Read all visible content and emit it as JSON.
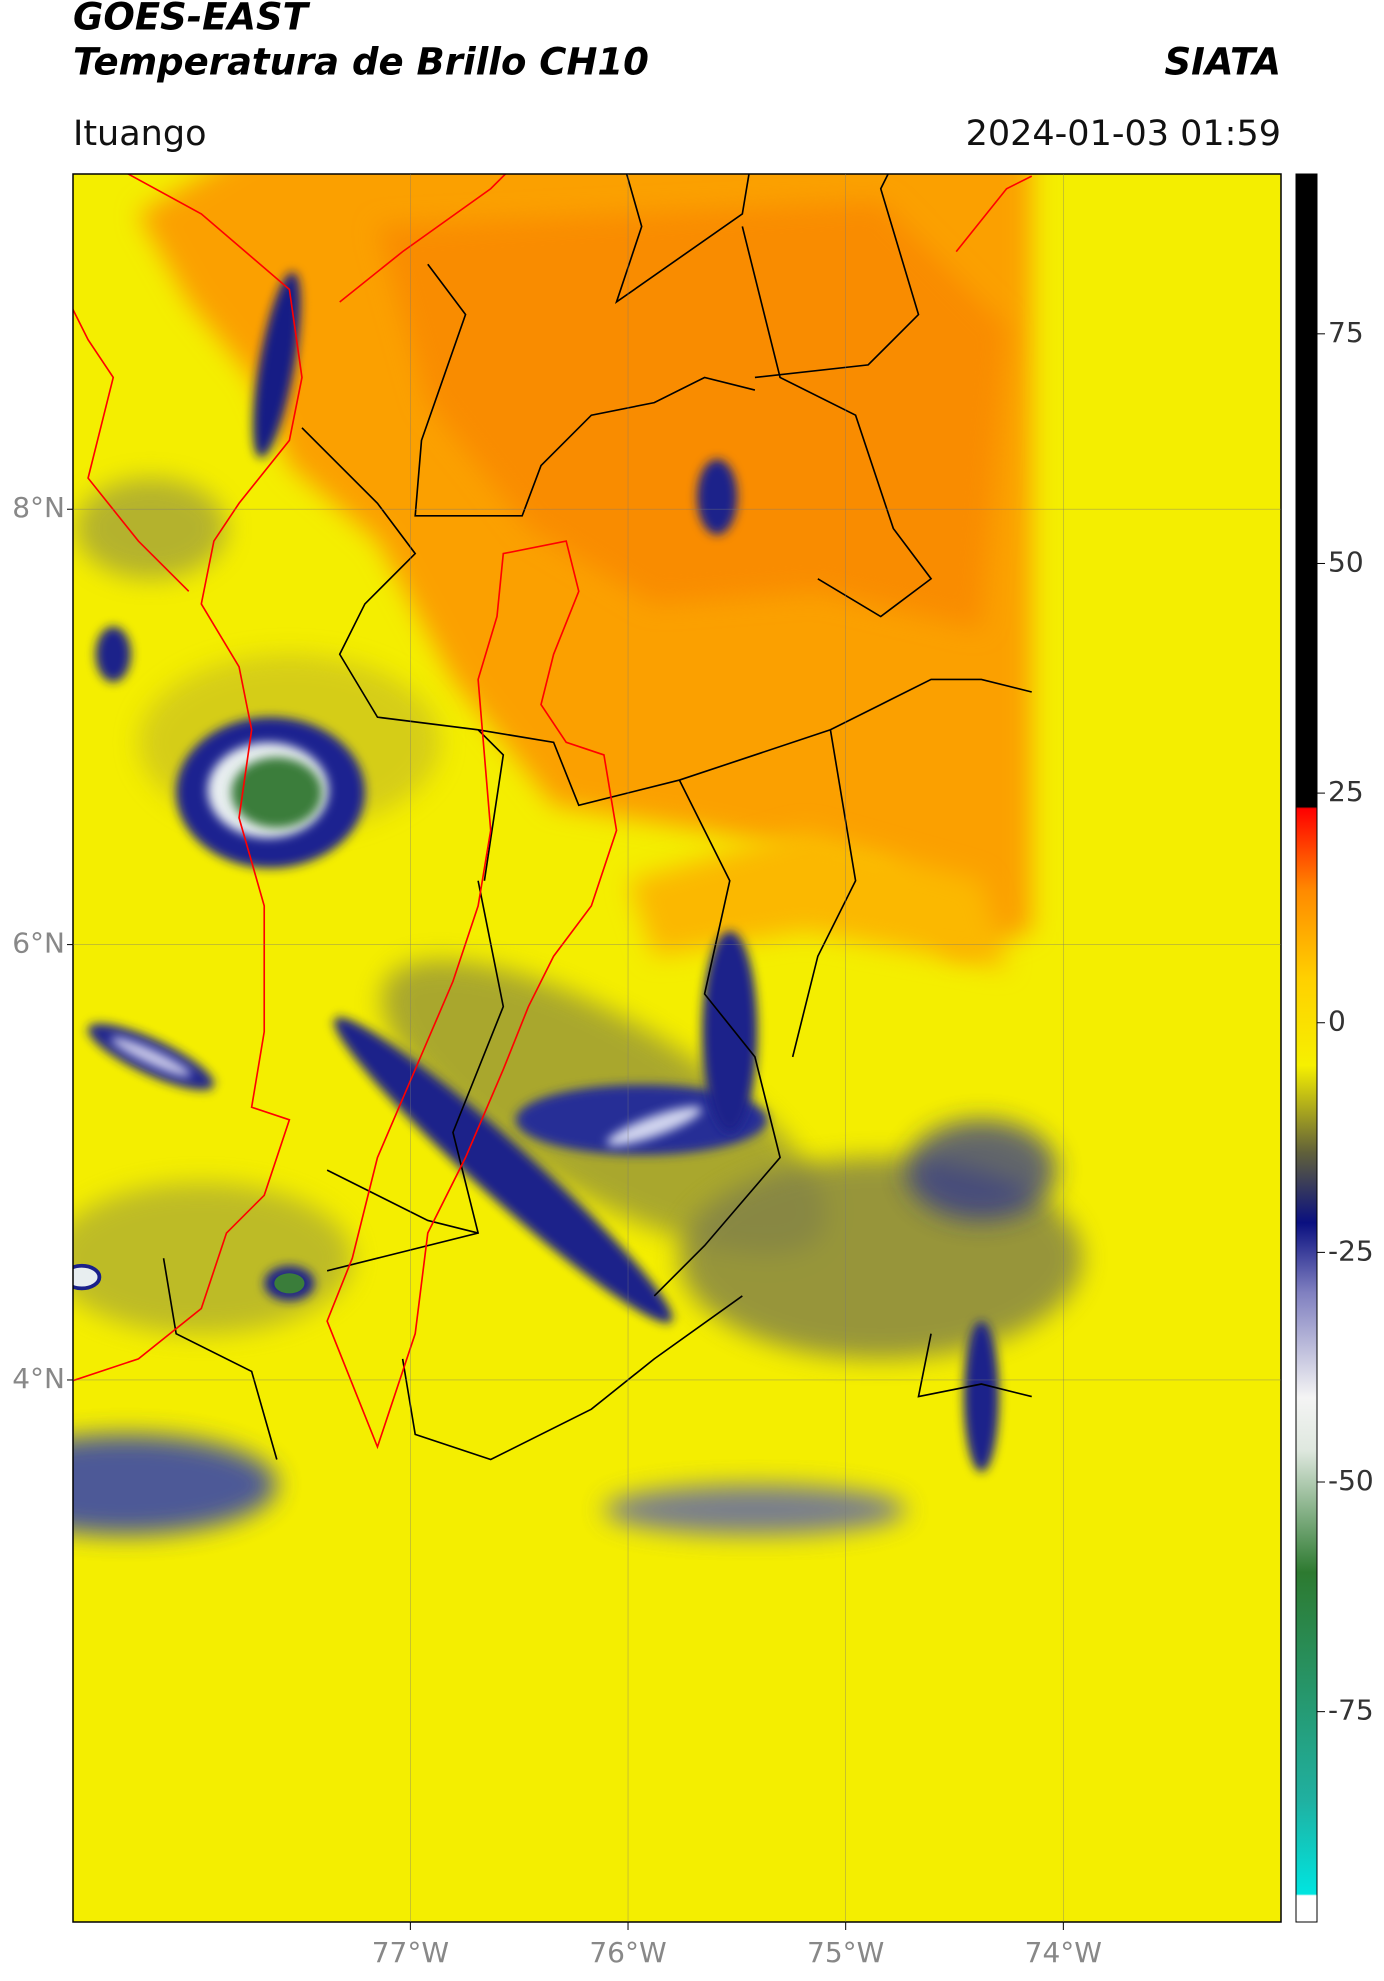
{
  "header": {
    "title": "GOES-EAST",
    "subtitle": "Temperatura de Brillo CH10",
    "organization": "SIATA",
    "location": "Ituango",
    "timestamp": "2024-01-03 01:59"
  },
  "map": {
    "xlim": [
      -78.55,
      -73.0
    ],
    "ylim": [
      1.51,
      9.54
    ],
    "xticks": [
      {
        "value": -77,
        "label": "77°W"
      },
      {
        "value": -76,
        "label": "76°W"
      },
      {
        "value": -75,
        "label": "75°W"
      },
      {
        "value": -74,
        "label": "74°W"
      }
    ],
    "yticks": [
      {
        "value": 8,
        "label": "8°N"
      },
      {
        "value": 6,
        "label": "6°N"
      },
      {
        "value": 4,
        "label": "4°N"
      }
    ],
    "grid": true
  },
  "colorbar": {
    "lim": [
      -97.9,
      92.4
    ],
    "ticks": [
      75,
      50,
      25,
      0,
      -25,
      -50,
      -75
    ]
  }
}
